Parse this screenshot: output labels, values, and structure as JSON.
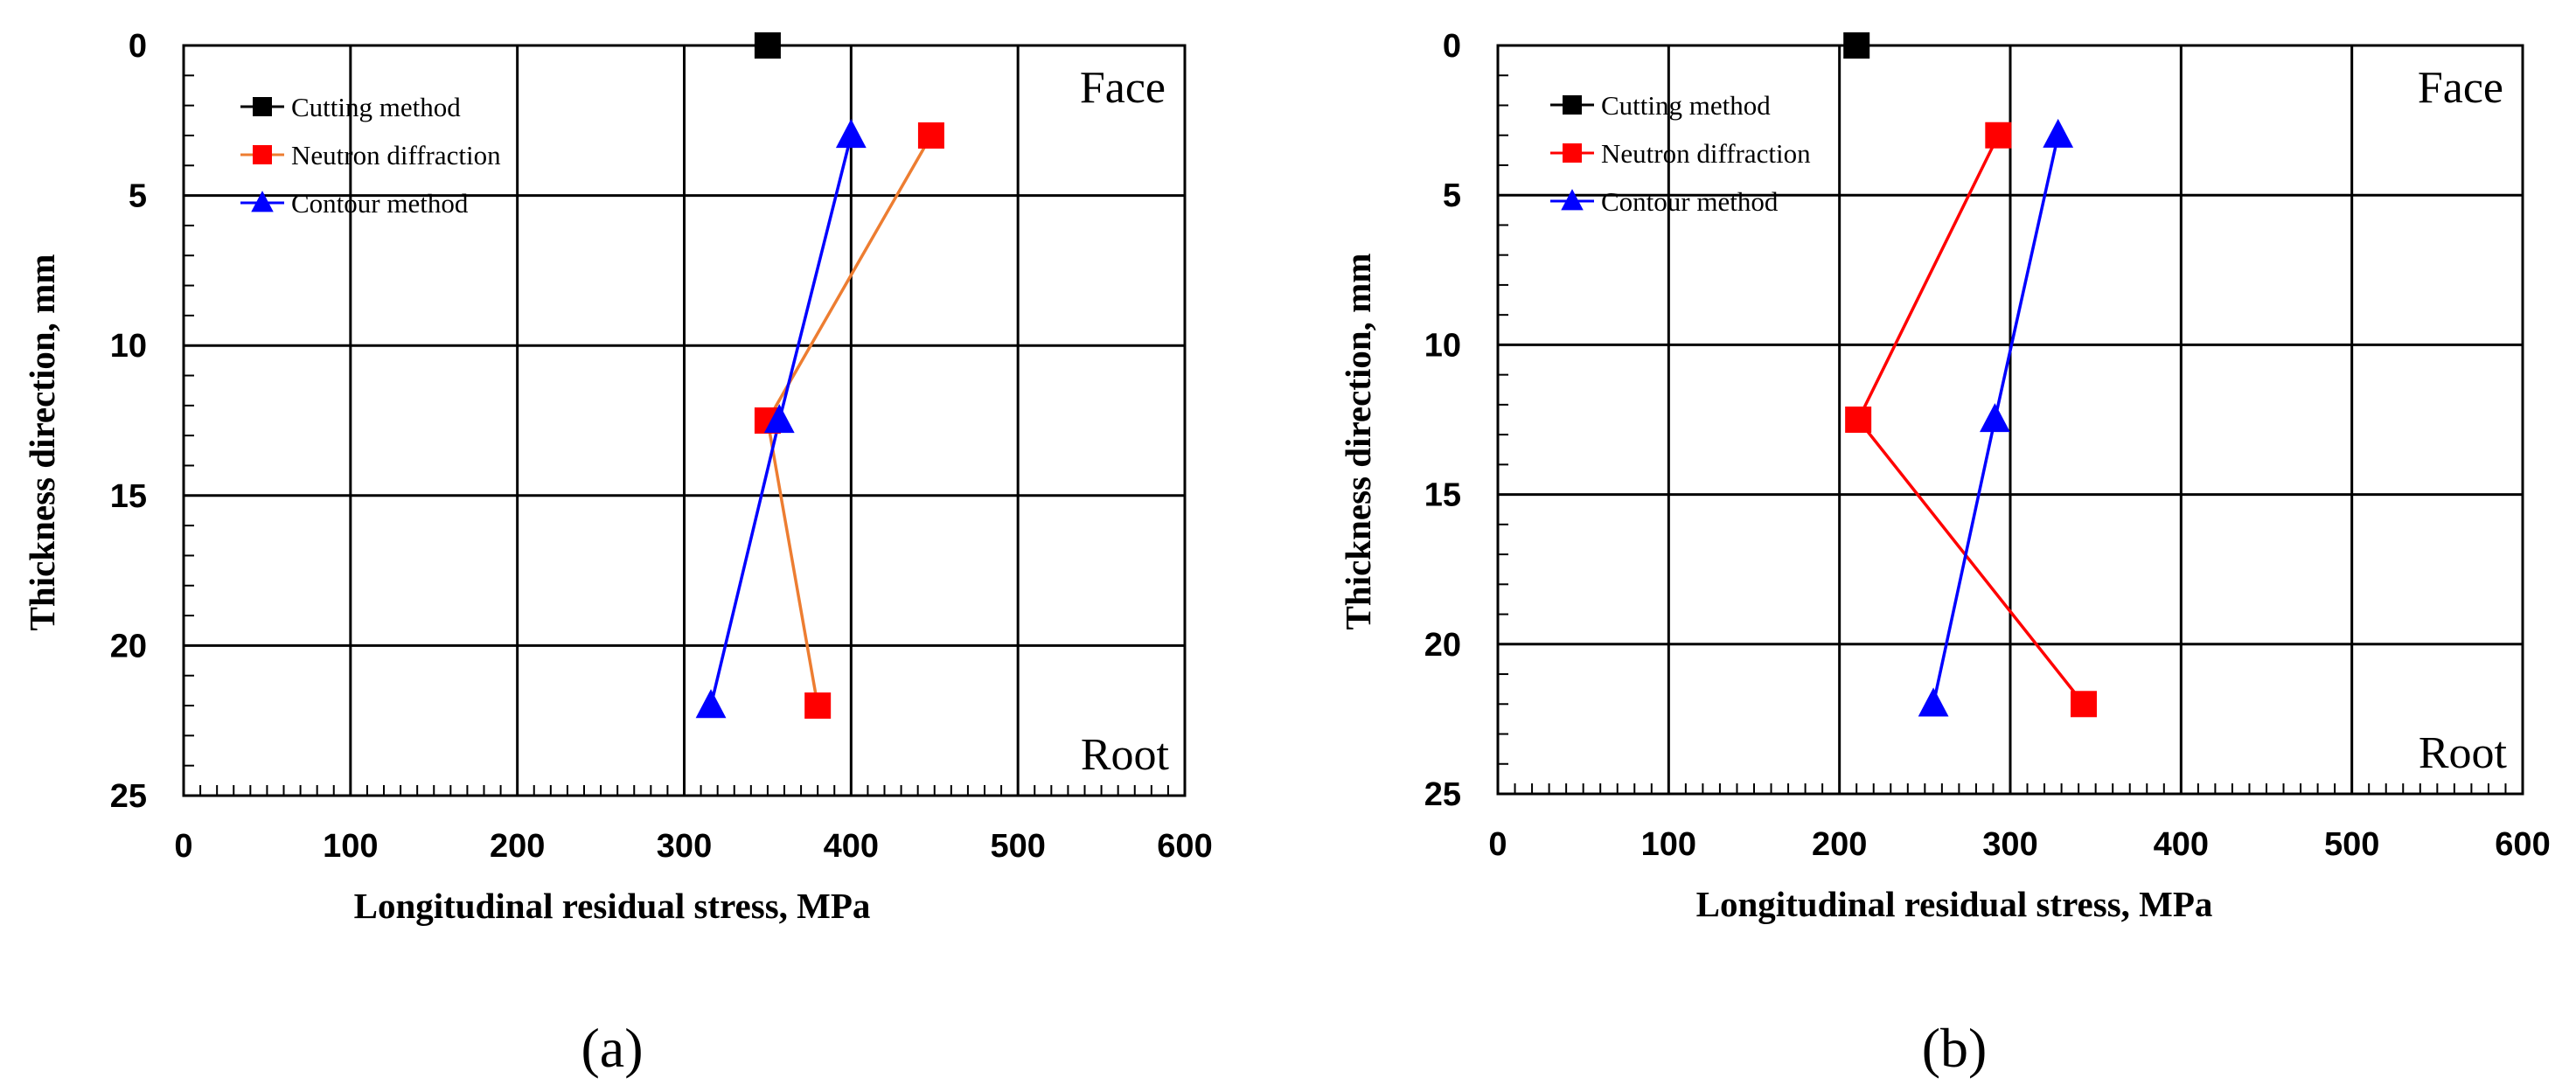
{
  "chart_data": [
    {
      "type": "line",
      "panel_label": "(a)",
      "xlabel": "Longitudinal residual stress, MPa",
      "ylabel": "Thickness direction, mm",
      "xlim": [
        0,
        600
      ],
      "ylim": [
        25,
        0
      ],
      "x_ticks": [
        0,
        100,
        200,
        300,
        400,
        500,
        600
      ],
      "y_ticks": [
        0,
        5,
        10,
        15,
        20,
        25
      ],
      "grid": true,
      "annotations": {
        "top_right": "Face",
        "bottom_right": "Root"
      },
      "legend_position": "top-left",
      "series": [
        {
          "name": "Cutting method",
          "marker": "square",
          "color": "#000000",
          "line": false,
          "points": [
            [
              350,
              0
            ]
          ]
        },
        {
          "name": "Neutron diffraction",
          "marker": "square",
          "color": "#ff0000",
          "line_color": "#ed7d31",
          "line": true,
          "points": [
            [
              448,
              3
            ],
            [
              350,
              12.5
            ],
            [
              380,
              22
            ]
          ]
        },
        {
          "name": "Contour method",
          "marker": "triangle",
          "color": "#0000ff",
          "line_color": "#0000ff",
          "line": true,
          "points": [
            [
              400,
              3
            ],
            [
              357,
              12.5
            ],
            [
              316,
              22
            ]
          ]
        }
      ]
    },
    {
      "type": "line",
      "panel_label": "(b)",
      "xlabel": "Longitudinal residual stress, MPa",
      "ylabel": "Thickness direction, mm",
      "xlim": [
        0,
        600
      ],
      "ylim": [
        25,
        0
      ],
      "x_ticks": [
        0,
        100,
        200,
        300,
        400,
        500,
        600
      ],
      "y_ticks": [
        0,
        5,
        10,
        15,
        20,
        25
      ],
      "grid": true,
      "annotations": {
        "top_right": "Face",
        "bottom_right": "Root"
      },
      "legend_position": "top-left",
      "series": [
        {
          "name": "Cutting method",
          "marker": "square",
          "color": "#000000",
          "line": false,
          "points": [
            [
              210,
              0
            ]
          ]
        },
        {
          "name": "Neutron diffraction",
          "marker": "square",
          "color": "#ff0000",
          "line_color": "#ff0000",
          "line": true,
          "points": [
            [
              293,
              3
            ],
            [
              211,
              12.5
            ],
            [
              343,
              22
            ]
          ]
        },
        {
          "name": "Contour method",
          "marker": "triangle",
          "color": "#0000ff",
          "line_color": "#0000ff",
          "line": true,
          "points": [
            [
              328,
              3
            ],
            [
              291,
              12.5
            ],
            [
              255,
              22
            ]
          ]
        }
      ]
    }
  ]
}
